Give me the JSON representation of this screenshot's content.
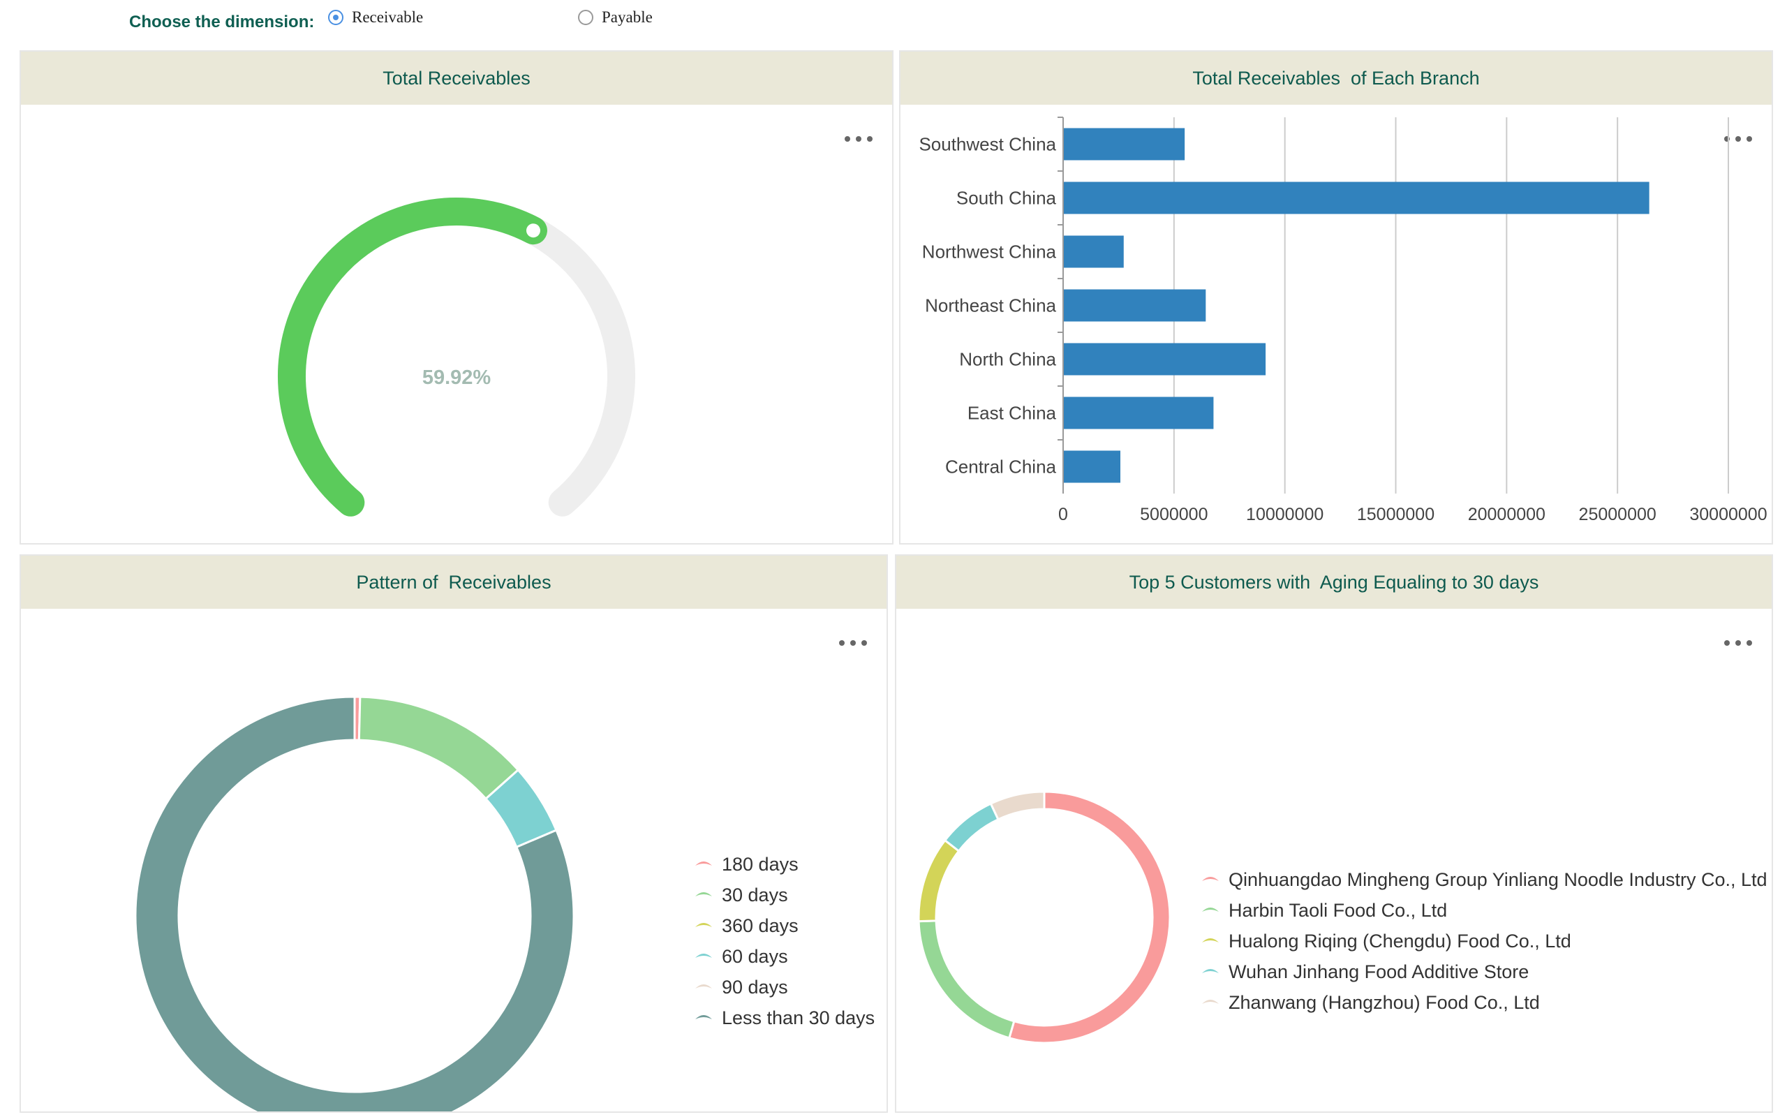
{
  "filter": {
    "label": "Choose the dimension:",
    "options": [
      {
        "label": "Receivable",
        "checked": true
      },
      {
        "label": "Payable",
        "checked": false
      }
    ]
  },
  "panels": {
    "total_receivables": {
      "title": "Total Receivables",
      "more_icon": "more-horizontal-icon",
      "gauge": {
        "value_percent": 59.92,
        "value_label": "59.92%",
        "progress_color": "#5bcb5b",
        "track_color": "#eeeeee"
      }
    },
    "by_branch": {
      "title": "Total Receivables  of Each Branch",
      "more_icon": "more-horizontal-icon"
    },
    "pattern": {
      "title": "Pattern of  Receivables",
      "more_icon": "more-horizontal-icon"
    },
    "top5": {
      "title": "Top 5 Customers with  Aging Equaling to 30 days",
      "more_icon": "more-horizontal-icon"
    }
  },
  "chart_data": [
    {
      "type": "bar",
      "orientation": "horizontal",
      "title": "Total Receivables  of Each Branch",
      "categories": [
        "Southwest China",
        "South China",
        "Northwest China",
        "Northeast China",
        "North China",
        "East China",
        "Central China"
      ],
      "values": [
        5450000,
        26400000,
        2700000,
        6400000,
        9100000,
        6750000,
        2550000
      ],
      "xlim": [
        0,
        30000000
      ],
      "xticks": [
        "0",
        "5000000",
        "10000000",
        "15000000",
        "20000000",
        "25000000",
        "30000000"
      ],
      "grid": true,
      "color": "#3182bd"
    },
    {
      "type": "pie",
      "donut": true,
      "title": "Pattern of  Receivables",
      "categories": [
        "180 days",
        "30 days",
        "360 days",
        "60 days",
        "90 days",
        "Less than 30 days"
      ],
      "values": [
        0.4,
        13,
        0,
        5.2,
        0,
        81.4
      ],
      "colors": [
        "#f99b9b",
        "#95d795",
        "#d3d458",
        "#7dd1d1",
        "#e9dacd",
        "#709b98"
      ],
      "legend_position": "right"
    },
    {
      "type": "pie",
      "donut": true,
      "title": "Top 5 Customers with  Aging Equaling to 30 days",
      "categories": [
        "Qinhuangdao Mingheng Group Yinliang Noodle Industry Co., Ltd",
        "Harbin Taoli Food Co., Ltd",
        "Hualong Riqing (Chengdu) Food Co., Ltd",
        "Wuhan Jinhang Food Additive Store",
        "Zhanwang (Hangzhou) Food Co., Ltd"
      ],
      "values": [
        54.5,
        20,
        11,
        7.5,
        7
      ],
      "colors": [
        "#f99b9b",
        "#95d795",
        "#d3d458",
        "#7dd1d1",
        "#e9dacd"
      ],
      "legend_position": "right"
    }
  ]
}
